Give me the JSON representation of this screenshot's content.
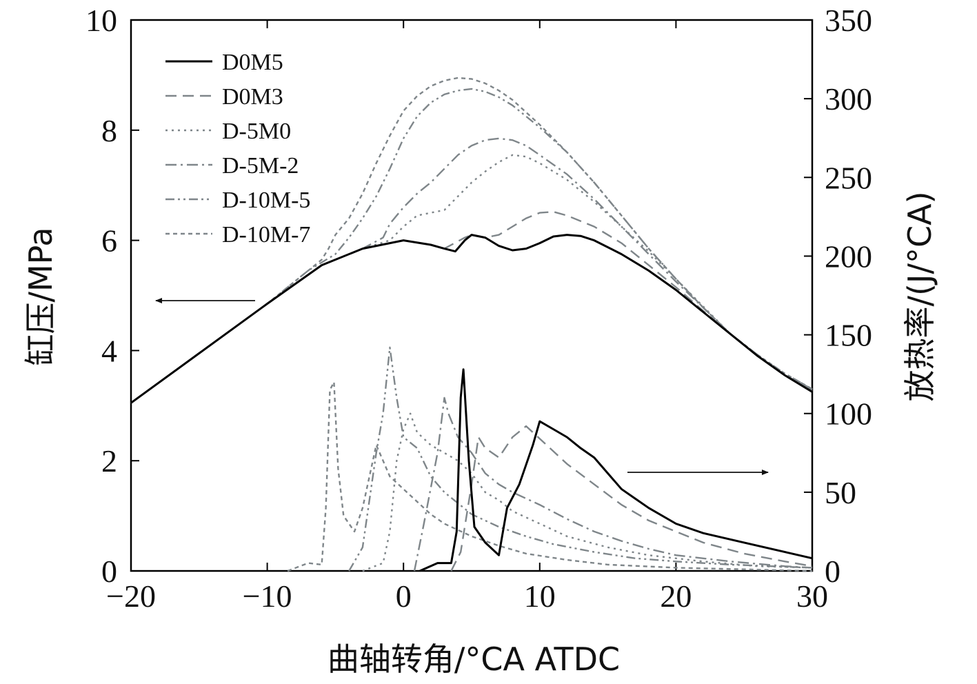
{
  "chart_data": {
    "type": "line",
    "x": {
      "label": "曲轴转角/°CA ATDC",
      "lim": [
        -20,
        30
      ],
      "ticks": [
        -20,
        -10,
        0,
        10,
        20,
        30
      ],
      "tick_labels": [
        "−20",
        "−10",
        "0",
        "10",
        "20",
        "30"
      ]
    },
    "y_left": {
      "label": "缸压/MPa",
      "lim": [
        0,
        10
      ],
      "ticks": [
        0,
        2,
        4,
        6,
        8,
        10
      ],
      "tick_labels": [
        "0",
        "2",
        "4",
        "6",
        "8",
        "10"
      ]
    },
    "y_right": {
      "label": "放热率/(J/°CA)",
      "lim": [
        0,
        350
      ],
      "ticks": [
        0,
        50,
        100,
        150,
        200,
        250,
        300,
        350
      ],
      "tick_labels": [
        "0",
        "50",
        "100",
        "150",
        "200",
        "250",
        "300",
        "350"
      ]
    },
    "legend": {
      "placement": "top-left"
    },
    "annotations": [
      {
        "type": "arrow",
        "direction": "left",
        "meaning": "pressure curves refer to left axis"
      },
      {
        "type": "arrow",
        "direction": "right",
        "meaning": "heat release curves refer to right axis"
      }
    ],
    "series": [
      {
        "name": "D0M5",
        "color": "#000000",
        "dash": "solid",
        "pressure": [
          [
            -20,
            3.05
          ],
          [
            -15,
            3.95
          ],
          [
            -10,
            4.85
          ],
          [
            -6,
            5.55
          ],
          [
            -3,
            5.85
          ],
          [
            0,
            6.0
          ],
          [
            2,
            5.92
          ],
          [
            3,
            5.85
          ],
          [
            3.8,
            5.8
          ],
          [
            4.5,
            6.0
          ],
          [
            5,
            6.1
          ],
          [
            6,
            6.05
          ],
          [
            7,
            5.9
          ],
          [
            8,
            5.82
          ],
          [
            9,
            5.85
          ],
          [
            10,
            5.95
          ],
          [
            11,
            6.07
          ],
          [
            12,
            6.1
          ],
          [
            13,
            6.08
          ],
          [
            14,
            6.0
          ],
          [
            16,
            5.75
          ],
          [
            18,
            5.45
          ],
          [
            20,
            5.1
          ],
          [
            22,
            4.7
          ],
          [
            24,
            4.3
          ],
          [
            26,
            3.9
          ],
          [
            28,
            3.55
          ],
          [
            30,
            3.25
          ]
        ],
        "heat_release": [
          [
            1.2,
            0
          ],
          [
            2.5,
            5
          ],
          [
            3.5,
            5
          ],
          [
            3.9,
            25
          ],
          [
            4.2,
            110
          ],
          [
            4.4,
            128
          ],
          [
            4.8,
            70
          ],
          [
            5.2,
            28
          ],
          [
            6,
            18
          ],
          [
            7,
            10
          ],
          [
            7.6,
            40
          ],
          [
            8.5,
            55
          ],
          [
            9.5,
            80
          ],
          [
            10,
            95
          ],
          [
            11,
            90
          ],
          [
            12,
            85
          ],
          [
            13,
            78
          ],
          [
            14,
            72
          ],
          [
            15,
            62
          ],
          [
            16,
            52
          ],
          [
            17,
            46
          ],
          [
            18,
            40
          ],
          [
            20,
            30
          ],
          [
            22,
            24
          ],
          [
            25,
            18
          ],
          [
            28,
            12
          ],
          [
            30,
            8
          ]
        ]
      },
      {
        "name": "D0M3",
        "color": "#7f868a",
        "dash": "dashed",
        "pressure": [
          [
            -20,
            3.05
          ],
          [
            -15,
            3.95
          ],
          [
            -10,
            4.85
          ],
          [
            -6,
            5.55
          ],
          [
            -3,
            5.85
          ],
          [
            0,
            6.0
          ],
          [
            2,
            5.92
          ],
          [
            3,
            5.85
          ],
          [
            4.5,
            6.05
          ],
          [
            5,
            6.1
          ],
          [
            6,
            6.05
          ],
          [
            7,
            6.1
          ],
          [
            8,
            6.25
          ],
          [
            9,
            6.4
          ],
          [
            10,
            6.5
          ],
          [
            11,
            6.52
          ],
          [
            12,
            6.45
          ],
          [
            14,
            6.25
          ],
          [
            16,
            5.95
          ],
          [
            18,
            5.55
          ],
          [
            20,
            5.15
          ],
          [
            22,
            4.72
          ],
          [
            24,
            4.3
          ],
          [
            26,
            3.9
          ],
          [
            28,
            3.55
          ],
          [
            30,
            3.27
          ]
        ],
        "heat_release": [
          [
            3.5,
            0
          ],
          [
            4.2,
            12
          ],
          [
            5,
            55
          ],
          [
            5.5,
            85
          ],
          [
            6,
            78
          ],
          [
            7,
            72
          ],
          [
            8,
            85
          ],
          [
            9,
            92
          ],
          [
            10,
            84
          ],
          [
            11,
            76
          ],
          [
            12,
            68
          ],
          [
            14,
            55
          ],
          [
            16,
            42
          ],
          [
            18,
            32
          ],
          [
            20,
            25
          ],
          [
            22,
            18
          ],
          [
            25,
            11
          ],
          [
            28,
            6
          ],
          [
            30,
            3
          ]
        ]
      },
      {
        "name": "D-5M0",
        "color": "#7f868a",
        "dash": "dotted",
        "pressure": [
          [
            -20,
            3.05
          ],
          [
            -15,
            3.95
          ],
          [
            -10,
            4.85
          ],
          [
            -6,
            5.55
          ],
          [
            -3,
            5.85
          ],
          [
            -1,
            6.0
          ],
          [
            0,
            6.25
          ],
          [
            1,
            6.45
          ],
          [
            2,
            6.5
          ],
          [
            3,
            6.55
          ],
          [
            4,
            6.8
          ],
          [
            5,
            7.05
          ],
          [
            6,
            7.25
          ],
          [
            7,
            7.42
          ],
          [
            8,
            7.55
          ],
          [
            9,
            7.52
          ],
          [
            10,
            7.4
          ],
          [
            12,
            7.1
          ],
          [
            14,
            6.7
          ],
          [
            16,
            6.25
          ],
          [
            18,
            5.8
          ],
          [
            20,
            5.3
          ],
          [
            22,
            4.8
          ],
          [
            24,
            4.3
          ],
          [
            26,
            3.9
          ],
          [
            28,
            3.55
          ],
          [
            30,
            3.3
          ]
        ],
        "heat_release": [
          [
            -3,
            0
          ],
          [
            -1.5,
            5
          ],
          [
            -1,
            25
          ],
          [
            -0.5,
            70
          ],
          [
            0,
            90
          ],
          [
            0.5,
            100
          ],
          [
            1,
            88
          ],
          [
            2,
            80
          ],
          [
            3,
            75
          ],
          [
            4,
            70
          ],
          [
            5,
            62
          ],
          [
            6,
            50
          ],
          [
            7,
            45
          ],
          [
            8,
            38
          ],
          [
            10,
            30
          ],
          [
            12,
            22
          ],
          [
            15,
            15
          ],
          [
            18,
            10
          ],
          [
            22,
            6
          ],
          [
            26,
            3
          ],
          [
            30,
            2
          ]
        ]
      },
      {
        "name": "D-5M-2",
        "color": "#7f868a",
        "dash": "dashdot",
        "pressure": [
          [
            -20,
            3.05
          ],
          [
            -15,
            3.95
          ],
          [
            -10,
            4.85
          ],
          [
            -6,
            5.55
          ],
          [
            -3,
            5.85
          ],
          [
            -1.5,
            6.05
          ],
          [
            -1,
            6.3
          ],
          [
            0,
            6.6
          ],
          [
            1,
            6.85
          ],
          [
            2,
            7.05
          ],
          [
            3,
            7.3
          ],
          [
            4,
            7.55
          ],
          [
            5,
            7.72
          ],
          [
            6,
            7.82
          ],
          [
            7,
            7.85
          ],
          [
            8,
            7.82
          ],
          [
            9,
            7.72
          ],
          [
            10,
            7.55
          ],
          [
            12,
            7.2
          ],
          [
            14,
            6.75
          ],
          [
            16,
            6.25
          ],
          [
            18,
            5.75
          ],
          [
            20,
            5.25
          ],
          [
            22,
            4.78
          ],
          [
            24,
            4.3
          ],
          [
            26,
            3.9
          ],
          [
            28,
            3.55
          ],
          [
            30,
            3.3
          ]
        ],
        "heat_release": [
          [
            0.8,
            0
          ],
          [
            1.5,
            30
          ],
          [
            2.5,
            75
          ],
          [
            3,
            110
          ],
          [
            3.3,
            100
          ],
          [
            4,
            85
          ],
          [
            5,
            75
          ],
          [
            6,
            62
          ],
          [
            7,
            55
          ],
          [
            8,
            50
          ],
          [
            10,
            42
          ],
          [
            12,
            33
          ],
          [
            14,
            25
          ],
          [
            16,
            19
          ],
          [
            18,
            14
          ],
          [
            20,
            10
          ],
          [
            24,
            6
          ],
          [
            28,
            3
          ],
          [
            30,
            2
          ]
        ]
      },
      {
        "name": "D-10M-5",
        "color": "#7f868a",
        "dash": "dashdotdot",
        "pressure": [
          [
            -20,
            3.05
          ],
          [
            -15,
            3.95
          ],
          [
            -10,
            4.85
          ],
          [
            -7,
            5.45
          ],
          [
            -6,
            5.6
          ],
          [
            -5,
            5.75
          ],
          [
            -4,
            6.05
          ],
          [
            -3,
            6.4
          ],
          [
            -2,
            6.8
          ],
          [
            -1,
            7.3
          ],
          [
            0,
            7.85
          ],
          [
            1,
            8.25
          ],
          [
            2,
            8.5
          ],
          [
            3,
            8.65
          ],
          [
            4,
            8.72
          ],
          [
            5,
            8.75
          ],
          [
            6,
            8.7
          ],
          [
            7,
            8.6
          ],
          [
            8,
            8.45
          ],
          [
            10,
            8.05
          ],
          [
            12,
            7.6
          ],
          [
            14,
            7.05
          ],
          [
            16,
            6.45
          ],
          [
            18,
            5.85
          ],
          [
            20,
            5.3
          ],
          [
            22,
            4.78
          ],
          [
            24,
            4.3
          ],
          [
            26,
            3.92
          ],
          [
            28,
            3.58
          ],
          [
            30,
            3.3
          ]
        ],
        "heat_release": [
          [
            -4,
            0
          ],
          [
            -3,
            15
          ],
          [
            -2.5,
            45
          ],
          [
            -2,
            75
          ],
          [
            -1.5,
            100
          ],
          [
            -1,
            142
          ],
          [
            -0.5,
            110
          ],
          [
            0,
            85
          ],
          [
            1,
            78
          ],
          [
            2,
            60
          ],
          [
            3,
            50
          ],
          [
            4,
            43
          ],
          [
            5,
            36
          ],
          [
            7,
            28
          ],
          [
            9,
            22
          ],
          [
            11,
            17
          ],
          [
            14,
            12
          ],
          [
            17,
            8
          ],
          [
            20,
            6
          ],
          [
            24,
            4
          ],
          [
            30,
            2
          ]
        ]
      },
      {
        "name": "D-10M-7",
        "color": "#7f868a",
        "dash": "shortdash",
        "pressure": [
          [
            -20,
            3.05
          ],
          [
            -15,
            3.95
          ],
          [
            -10,
            4.85
          ],
          [
            -7,
            5.45
          ],
          [
            -6,
            5.65
          ],
          [
            -5.5,
            5.85
          ],
          [
            -5,
            6.1
          ],
          [
            -4,
            6.4
          ],
          [
            -3,
            6.85
          ],
          [
            -2,
            7.4
          ],
          [
            -1,
            7.9
          ],
          [
            0,
            8.35
          ],
          [
            1,
            8.62
          ],
          [
            2,
            8.8
          ],
          [
            3,
            8.9
          ],
          [
            4,
            8.95
          ],
          [
            5,
            8.93
          ],
          [
            6,
            8.85
          ],
          [
            7,
            8.72
          ],
          [
            8,
            8.55
          ],
          [
            10,
            8.1
          ],
          [
            12,
            7.6
          ],
          [
            14,
            7.05
          ],
          [
            16,
            6.45
          ],
          [
            18,
            5.85
          ],
          [
            20,
            5.3
          ],
          [
            22,
            4.78
          ],
          [
            24,
            4.3
          ],
          [
            26,
            3.92
          ],
          [
            28,
            3.58
          ],
          [
            30,
            3.3
          ]
        ],
        "heat_release": [
          [
            -8.5,
            0
          ],
          [
            -7,
            5
          ],
          [
            -6,
            4
          ],
          [
            -5.7,
            40
          ],
          [
            -5.4,
            115
          ],
          [
            -5.1,
            120
          ],
          [
            -4.8,
            65
          ],
          [
            -4.4,
            35
          ],
          [
            -3.6,
            25
          ],
          [
            -3,
            40
          ],
          [
            -2.5,
            60
          ],
          [
            -2,
            80
          ],
          [
            -1.5,
            70
          ],
          [
            -1,
            60
          ],
          [
            0,
            52
          ],
          [
            1,
            44
          ],
          [
            2,
            36
          ],
          [
            3,
            30
          ],
          [
            5,
            22
          ],
          [
            7,
            16
          ],
          [
            9,
            11
          ],
          [
            12,
            7
          ],
          [
            15,
            4
          ],
          [
            20,
            2
          ],
          [
            25,
            1
          ],
          [
            30,
            0
          ]
        ]
      }
    ]
  }
}
